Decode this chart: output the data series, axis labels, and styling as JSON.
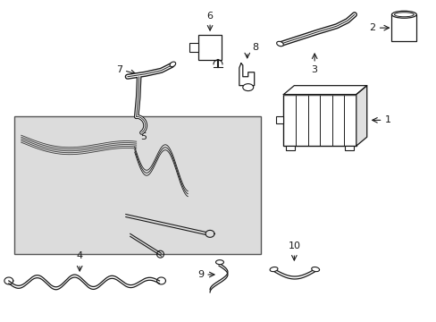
{
  "bg_color": "#ffffff",
  "line_color": "#1a1a1a",
  "box_bg": "#e8e8e8",
  "label_fontsize": 8,
  "figsize": [
    4.89,
    3.6
  ],
  "dpi": 100
}
